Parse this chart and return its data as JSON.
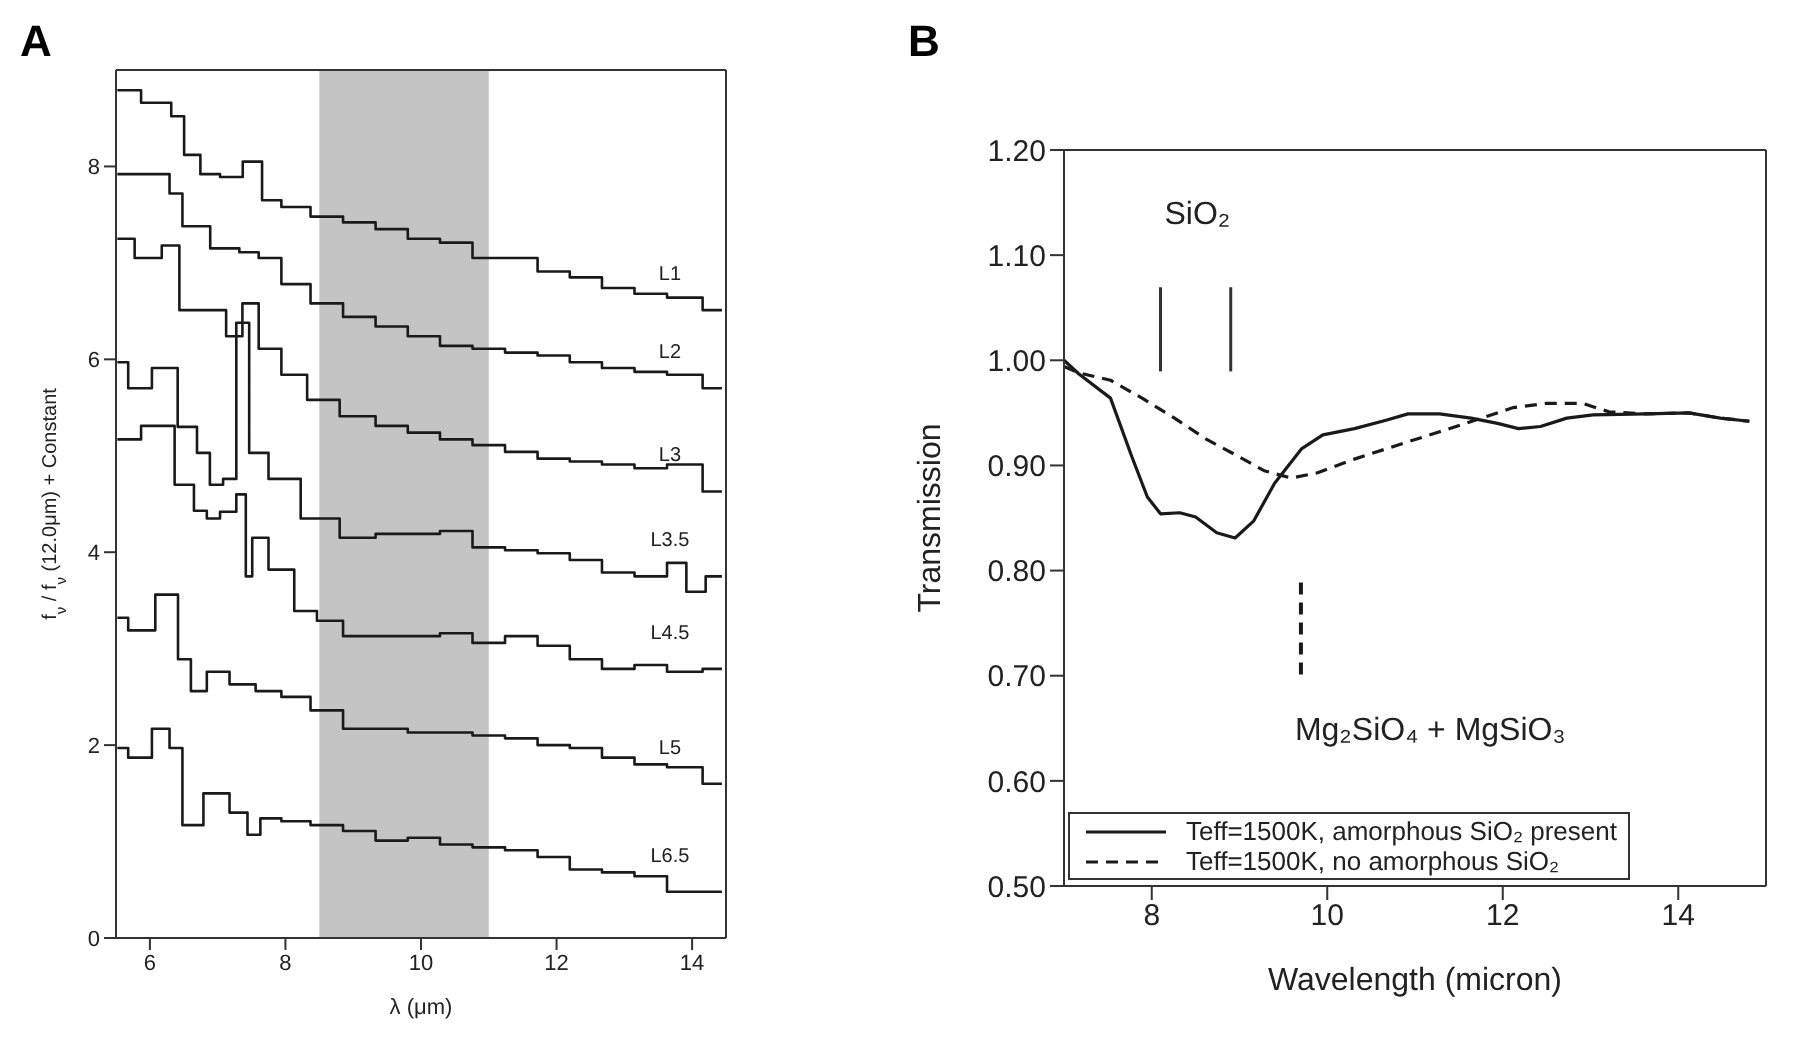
{
  "chart_data": [
    {
      "type": "step",
      "title": "A",
      "xlabel": "λ (μm)",
      "ylabel": "f$_{ν}$ / f$_{ν}$ (12.0μm) + Constant",
      "xlim": [
        5.5,
        14.5
      ],
      "ylim": [
        0,
        9
      ],
      "xticks": [
        6,
        8,
        10,
        12,
        14
      ],
      "yticks": [
        0,
        2,
        4,
        6,
        8
      ],
      "bands": [
        {
          "axis": "x",
          "from": 8.5,
          "to": 11,
          "color": "#c4c4c4"
        }
      ],
      "series": [
        {
          "name": "L1",
          "color": "#1a1a1a",
          "x": [
            5.52,
            6.22,
            6.41,
            6.6,
            6.89,
            7.18,
            7.56,
            7.75,
            8.13,
            8.61,
            9.09,
            9.57,
            10.04,
            10.52,
            11.0,
            11.48,
            11.96,
            12.43,
            12.91,
            13.39,
            13.87,
            14.44
          ],
          "values": [
            8.79,
            8.66,
            8.52,
            8.12,
            7.92,
            7.89,
            8.05,
            7.65,
            7.58,
            7.48,
            7.42,
            7.35,
            7.25,
            7.21,
            7.05,
            7.05,
            6.91,
            6.85,
            6.74,
            6.68,
            6.64,
            6.51
          ]
        },
        {
          "name": "L2",
          "color": "#1a1a1a",
          "x": [
            5.52,
            6.22,
            6.36,
            6.6,
            7.18,
            7.46,
            7.75,
            8.13,
            8.61,
            9.09,
            9.57,
            10.04,
            10.52,
            11.0,
            11.48,
            11.96,
            12.43,
            12.91,
            13.39,
            13.87,
            14.44
          ],
          "values": [
            7.92,
            7.92,
            7.72,
            7.38,
            7.15,
            7.11,
            7.05,
            6.78,
            6.58,
            6.44,
            6.34,
            6.24,
            6.14,
            6.11,
            6.07,
            6.04,
            5.97,
            5.91,
            5.87,
            5.84,
            5.7
          ]
        },
        {
          "name": "L3",
          "color": "#1a1a1a",
          "x": [
            5.52,
            6.03,
            6.32,
            6.55,
            6.98,
            7.27,
            7.46,
            7.75,
            8.13,
            8.51,
            9.09,
            9.57,
            10.04,
            10.52,
            11.0,
            11.48,
            11.96,
            12.43,
            12.91,
            13.39,
            13.87,
            14.44
          ],
          "values": [
            7.25,
            7.05,
            7.18,
            6.51,
            6.51,
            6.24,
            6.58,
            6.11,
            5.84,
            5.58,
            5.41,
            5.31,
            5.24,
            5.17,
            5.11,
            5.04,
            4.97,
            4.94,
            4.91,
            4.87,
            4.91,
            4.63
          ]
        },
        {
          "name": "L3.5",
          "color": "#1a1a1a",
          "x": [
            5.52,
            5.84,
            6.22,
            6.6,
            6.79,
            6.98,
            7.18,
            7.37,
            7.56,
            7.94,
            8.51,
            9.09,
            9.57,
            10.04,
            10.52,
            11.0,
            11.48,
            11.96,
            12.43,
            12.91,
            13.39,
            13.87,
            13.96,
            14.44
          ],
          "values": [
            5.97,
            5.7,
            5.91,
            5.3,
            5.03,
            4.7,
            4.76,
            6.38,
            5.03,
            4.76,
            4.35,
            4.15,
            4.19,
            4.19,
            4.22,
            4.05,
            4.02,
            3.99,
            3.92,
            3.79,
            3.75,
            3.89,
            3.59,
            3.75
          ]
        },
        {
          "name": "L4.5",
          "color": "#1a1a1a",
          "x": [
            5.52,
            6.22,
            6.51,
            6.79,
            6.89,
            7.18,
            7.37,
            7.46,
            7.56,
            7.94,
            8.32,
            8.61,
            9.09,
            9.57,
            10.04,
            10.52,
            11.0,
            11.48,
            11.96,
            12.43,
            12.91,
            13.39,
            13.87,
            14.44
          ],
          "values": [
            5.17,
            5.31,
            4.7,
            4.43,
            4.35,
            4.42,
            4.6,
            3.75,
            4.15,
            3.82,
            3.39,
            3.29,
            3.13,
            3.13,
            3.13,
            3.16,
            3.06,
            3.13,
            3.03,
            2.89,
            2.79,
            2.83,
            2.76,
            2.79
          ]
        },
        {
          "name": "L5",
          "color": "#1a1a1a",
          "x": [
            5.52,
            5.84,
            6.32,
            6.51,
            6.7,
            6.98,
            7.37,
            7.75,
            8.13,
            8.61,
            9.09,
            9.57,
            10.04,
            10.52,
            11.0,
            11.48,
            11.96,
            12.43,
            12.91,
            13.39,
            13.87,
            14.44
          ],
          "values": [
            3.32,
            3.19,
            3.56,
            2.89,
            2.56,
            2.76,
            2.63,
            2.56,
            2.5,
            2.36,
            2.17,
            2.17,
            2.13,
            2.13,
            2.1,
            2.07,
            2.0,
            1.97,
            1.87,
            1.8,
            1.77,
            1.6
          ]
        },
        {
          "name": "L6.5",
          "color": "#1a1a1a",
          "x": [
            5.52,
            5.84,
            6.22,
            6.36,
            6.6,
            6.98,
            7.37,
            7.51,
            7.75,
            8.13,
            8.61,
            9.09,
            9.57,
            10.04,
            10.52,
            11.0,
            11.48,
            11.96,
            12.43,
            12.91,
            13.39,
            13.87,
            14.44
          ],
          "values": [
            1.97,
            1.87,
            2.17,
            1.97,
            1.17,
            1.5,
            1.3,
            1.07,
            1.24,
            1.21,
            1.17,
            1.11,
            1.01,
            1.04,
            0.97,
            0.94,
            0.91,
            0.84,
            0.71,
            0.68,
            0.64,
            0.48,
            0.48
          ]
        }
      ]
    },
    {
      "type": "line",
      "title": "B",
      "xlabel": "Wavelength (micron)",
      "ylabel": "Transmission",
      "xlim": [
        7,
        15
      ],
      "ylim": [
        0.5,
        1.2
      ],
      "xticks": [
        8,
        10,
        12,
        14
      ],
      "yticks": [
        {
          "value": 0.5,
          "label": "0.50"
        },
        {
          "value": 0.6,
          "label": "0.60"
        },
        {
          "value": 0.7,
          "label": "0.70"
        },
        {
          "value": 0.8,
          "label": "0.80"
        },
        {
          "value": 0.9,
          "label": "0.90"
        },
        {
          "value": 1.0,
          "label": "1.00"
        },
        {
          "value": 1.1,
          "label": "1.10"
        },
        {
          "value": 1.2,
          "label": "1.20"
        }
      ],
      "legend": "bottom left",
      "annotations": [
        "SiO₂",
        "Mg₂SiO₄ + MgSiO₃"
      ],
      "ref_lines": [
        {
          "axis": "x",
          "value": 8.1,
          "color": "#333333",
          "line_style": "solid"
        },
        {
          "axis": "x",
          "value": 8.9,
          "color": "#333333",
          "line_style": "solid"
        },
        {
          "axis": "x",
          "value": 9.7,
          "color": "#1a1a1a",
          "line_style": "dashed"
        }
      ],
      "series": [
        {
          "name": "Teff=1500K, amorphous SiO₂ present",
          "color": "#1a1a1a",
          "line_style": "solid",
          "x": [
            7.0,
            7.17,
            7.53,
            7.77,
            7.95,
            8.1,
            8.32,
            8.5,
            8.74,
            8.95,
            9.16,
            9.4,
            9.71,
            9.95,
            10.31,
            10.67,
            10.92,
            11.28,
            11.64,
            11.94,
            12.18,
            12.43,
            12.73,
            13.03,
            13.63,
            14.12,
            14.48,
            14.81
          ],
          "values": [
            1.0,
            0.987,
            0.964,
            0.909,
            0.87,
            0.854,
            0.855,
            0.851,
            0.836,
            0.831,
            0.847,
            0.883,
            0.916,
            0.929,
            0.935,
            0.943,
            0.949,
            0.949,
            0.945,
            0.94,
            0.935,
            0.937,
            0.945,
            0.948,
            0.949,
            0.95,
            0.945,
            0.942
          ]
        },
        {
          "name": "Teff=1500K, no amorphous SiO₂",
          "color": "#1a1a1a",
          "line_style": "dashed",
          "x": [
            7.0,
            7.17,
            7.53,
            7.89,
            8.26,
            8.62,
            8.98,
            9.28,
            9.59,
            9.89,
            10.31,
            10.79,
            11.28,
            11.76,
            12.12,
            12.49,
            12.91,
            13.21,
            13.63,
            14.12,
            14.48,
            14.81
          ],
          "values": [
            0.994,
            0.988,
            0.981,
            0.964,
            0.945,
            0.925,
            0.909,
            0.895,
            0.888,
            0.893,
            0.906,
            0.919,
            0.932,
            0.945,
            0.955,
            0.959,
            0.959,
            0.951,
            0.949,
            0.95,
            0.945,
            0.942
          ]
        }
      ]
    }
  ]
}
